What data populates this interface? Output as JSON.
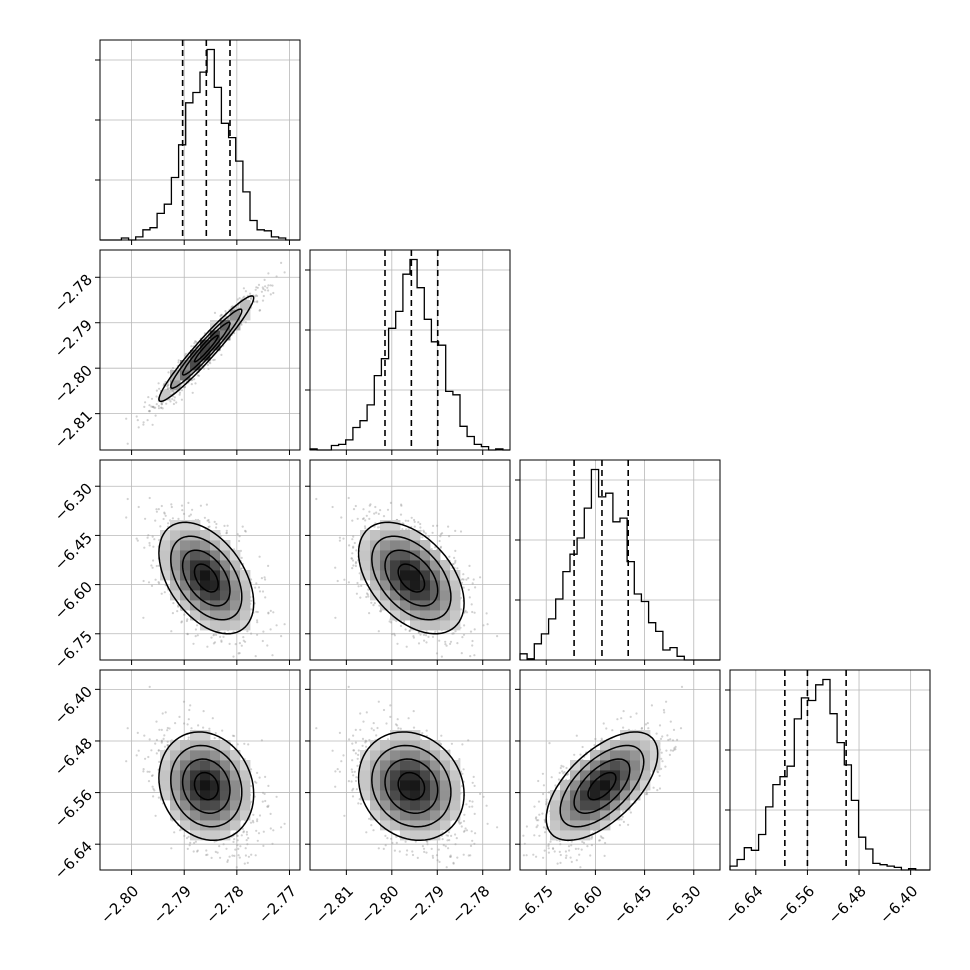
{
  "chart_data": {
    "type": "corner",
    "title": "",
    "labels": [
      "",
      "",
      "",
      ""
    ],
    "parameters": [
      {
        "mean": -2.7858,
        "sd": 0.0045,
        "quantiles": [
          -2.7903,
          -2.7858,
          -2.7813
        ],
        "range": [
          -2.806,
          -2.768
        ],
        "ticks": [
          -2.8,
          -2.79,
          -2.78,
          -2.77
        ],
        "tick_labels": [
          "−2.80",
          "−2.79",
          "−2.78",
          "−2.77"
        ]
      },
      {
        "mean": -2.7957,
        "sd": 0.0058,
        "quantiles": [
          -2.8015,
          -2.7957,
          -2.7899
        ],
        "range": [
          -2.818,
          -2.774
        ],
        "ticks": [
          -2.81,
          -2.8,
          -2.79,
          -2.78
        ],
        "tick_labels": [
          "−2.81",
          "−2.80",
          "−2.79",
          "−2.78"
        ]
      },
      {
        "mean": -6.58,
        "sd": 0.085,
        "quantiles": [
          -6.665,
          -6.58,
          -6.5
        ],
        "range": [
          -6.83,
          -6.22
        ],
        "ticks": [
          -6.75,
          -6.6,
          -6.45,
          -6.3
        ],
        "tick_labels": [
          "−6.75",
          "−6.60",
          "−6.45",
          "−6.30"
        ]
      },
      {
        "mean": -6.55,
        "sd": 0.042,
        "quantiles": [
          -6.595,
          -6.56,
          -6.5
        ],
        "range": [
          -6.68,
          -6.37
        ],
        "ticks": [
          -6.64,
          -6.56,
          -6.48,
          -6.4
        ],
        "tick_labels": [
          "−6.64",
          "−6.56",
          "−6.48",
          "−6.40"
        ]
      }
    ],
    "correlations": [
      {
        "pair": [
          1,
          0
        ],
        "rho": 0.96
      },
      {
        "pair": [
          2,
          0
        ],
        "rho": -0.45
      },
      {
        "pair": [
          2,
          1
        ],
        "rho": -0.45
      },
      {
        "pair": [
          3,
          0
        ],
        "rho": -0.15
      },
      {
        "pair": [
          3,
          1
        ],
        "rho": -0.15
      },
      {
        "pair": [
          3,
          2
        ],
        "rho": 0.6
      }
    ],
    "grid": true,
    "quantile_lines": [
      0.16,
      0.5,
      0.84
    ]
  }
}
